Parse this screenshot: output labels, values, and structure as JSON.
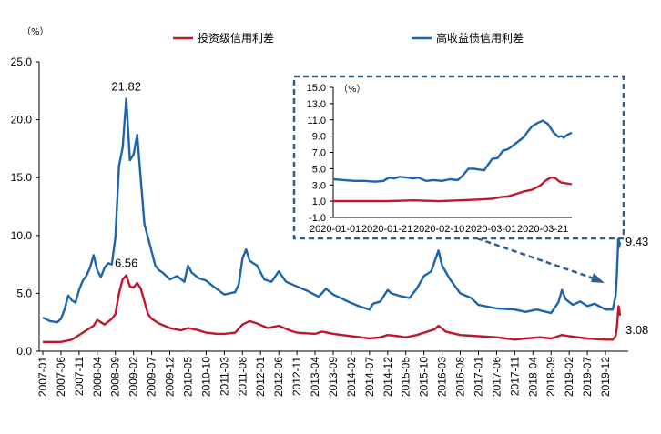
{
  "chart_data": {
    "type": "line",
    "unit_label": "（%）",
    "main": {
      "y_ticks": [
        "25.0",
        "20.0",
        "15.0",
        "10.0",
        "5.0",
        "0.0"
      ],
      "ylim": [
        0,
        25
      ],
      "x_ticks": [
        "2007-01",
        "2007-06",
        "2007-11",
        "2008-04",
        "2008-09",
        "2009-02",
        "2009-07",
        "2009-12",
        "2010-05",
        "2010-10",
        "2011-03",
        "2011-08",
        "2012-01",
        "2012-06",
        "2012-11",
        "2013-04",
        "2013-09",
        "2014-02",
        "2014-07",
        "2014-12",
        "2015-05",
        "2015-10",
        "2016-03",
        "2016-08",
        "2017-01",
        "2017-06",
        "2017-11",
        "2018-04",
        "2018-09",
        "2019-02",
        "2019-07",
        "2019-12"
      ],
      "x_range": [
        "2007-01",
        "2020-03"
      ],
      "series": [
        {
          "name": "投资级信用利差",
          "color": "#c0172a",
          "points": [
            [
              "2007-01",
              0.8
            ],
            [
              "2007-06",
              0.8
            ],
            [
              "2007-09",
              1.0
            ],
            [
              "2007-11",
              1.4
            ],
            [
              "2008-01",
              1.8
            ],
            [
              "2008-03",
              2.2
            ],
            [
              "2008-04",
              2.7
            ],
            [
              "2008-06",
              2.3
            ],
            [
              "2008-08",
              2.8
            ],
            [
              "2008-09",
              3.2
            ],
            [
              "2008-10",
              5.0
            ],
            [
              "2008-11",
              6.2
            ],
            [
              "2008-12",
              6.56
            ],
            [
              "2009-01",
              5.6
            ],
            [
              "2009-02",
              5.5
            ],
            [
              "2009-03",
              5.9
            ],
            [
              "2009-04",
              5.4
            ],
            [
              "2009-05",
              4.3
            ],
            [
              "2009-06",
              3.2
            ],
            [
              "2009-07",
              2.8
            ],
            [
              "2009-09",
              2.4
            ],
            [
              "2009-12",
              2.0
            ],
            [
              "2010-03",
              1.8
            ],
            [
              "2010-05",
              2.0
            ],
            [
              "2010-08",
              1.8
            ],
            [
              "2010-10",
              1.6
            ],
            [
              "2011-01",
              1.5
            ],
            [
              "2011-03",
              1.5
            ],
            [
              "2011-06",
              1.6
            ],
            [
              "2011-08",
              2.3
            ],
            [
              "2011-10",
              2.6
            ],
            [
              "2011-12",
              2.4
            ],
            [
              "2012-03",
              2.0
            ],
            [
              "2012-06",
              2.2
            ],
            [
              "2012-09",
              1.8
            ],
            [
              "2012-11",
              1.6
            ],
            [
              "2013-04",
              1.5
            ],
            [
              "2013-06",
              1.7
            ],
            [
              "2013-09",
              1.5
            ],
            [
              "2014-02",
              1.3
            ],
            [
              "2014-07",
              1.1
            ],
            [
              "2014-10",
              1.2
            ],
            [
              "2014-12",
              1.4
            ],
            [
              "2015-03",
              1.3
            ],
            [
              "2015-05",
              1.2
            ],
            [
              "2015-08",
              1.4
            ],
            [
              "2015-10",
              1.6
            ],
            [
              "2016-01",
              1.9
            ],
            [
              "2016-02",
              2.2
            ],
            [
              "2016-04",
              1.7
            ],
            [
              "2016-08",
              1.4
            ],
            [
              "2017-01",
              1.3
            ],
            [
              "2017-06",
              1.2
            ],
            [
              "2017-11",
              1.0
            ],
            [
              "2018-02",
              1.1
            ],
            [
              "2018-06",
              1.2
            ],
            [
              "2018-09",
              1.1
            ],
            [
              "2018-12",
              1.4
            ],
            [
              "2019-02",
              1.3
            ],
            [
              "2019-07",
              1.1
            ],
            [
              "2019-12",
              1.0
            ],
            [
              "2020-02",
              1.0
            ],
            [
              "2020-02-25",
              1.3
            ],
            [
              "2020-03-05",
              2.0
            ],
            [
              "2020-03-12",
              3.0
            ],
            [
              "2020-03-19",
              3.9
            ],
            [
              "2020-03-24",
              3.6
            ],
            [
              "2020-03-31",
              3.08
            ]
          ]
        },
        {
          "name": "高收益债信用利差",
          "color": "#1c64ae",
          "points": [
            [
              "2007-01",
              2.9
            ],
            [
              "2007-03",
              2.6
            ],
            [
              "2007-05",
              2.5
            ],
            [
              "2007-06",
              2.8
            ],
            [
              "2007-07",
              3.6
            ],
            [
              "2007-08",
              4.8
            ],
            [
              "2007-09",
              4.4
            ],
            [
              "2007-10",
              4.2
            ],
            [
              "2007-11",
              5.3
            ],
            [
              "2007-12",
              6.1
            ],
            [
              "2008-01",
              6.5
            ],
            [
              "2008-02",
              7.2
            ],
            [
              "2008-03",
              8.3
            ],
            [
              "2008-04",
              7.0
            ],
            [
              "2008-05",
              6.4
            ],
            [
              "2008-06",
              7.2
            ],
            [
              "2008-07",
              7.6
            ],
            [
              "2008-08",
              7.5
            ],
            [
              "2008-09",
              9.8
            ],
            [
              "2008-10",
              16.0
            ],
            [
              "2008-11",
              17.6
            ],
            [
              "2008-12",
              21.82
            ],
            [
              "2009-01",
              16.5
            ],
            [
              "2009-02",
              17.0
            ],
            [
              "2009-03",
              18.7
            ],
            [
              "2009-04",
              14.8
            ],
            [
              "2009-05",
              11.0
            ],
            [
              "2009-06",
              9.8
            ],
            [
              "2009-07",
              8.6
            ],
            [
              "2009-08",
              7.4
            ],
            [
              "2009-09",
              7.0
            ],
            [
              "2009-10",
              6.8
            ],
            [
              "2009-12",
              6.2
            ],
            [
              "2010-02",
              6.5
            ],
            [
              "2010-04",
              6.0
            ],
            [
              "2010-05",
              7.4
            ],
            [
              "2010-06",
              6.8
            ],
            [
              "2010-08",
              6.3
            ],
            [
              "2010-10",
              6.1
            ],
            [
              "2010-12",
              5.6
            ],
            [
              "2011-03",
              4.9
            ],
            [
              "2011-06",
              5.1
            ],
            [
              "2011-07",
              5.8
            ],
            [
              "2011-08",
              8.0
            ],
            [
              "2011-09",
              8.8
            ],
            [
              "2011-10",
              7.8
            ],
            [
              "2011-12",
              7.4
            ],
            [
              "2012-02",
              6.2
            ],
            [
              "2012-04",
              6.0
            ],
            [
              "2012-06",
              6.9
            ],
            [
              "2012-08",
              6.0
            ],
            [
              "2012-11",
              5.6
            ],
            [
              "2013-02",
              5.2
            ],
            [
              "2013-05",
              4.7
            ],
            [
              "2013-07",
              5.4
            ],
            [
              "2013-09",
              4.9
            ],
            [
              "2014-01",
              4.3
            ],
            [
              "2014-04",
              3.9
            ],
            [
              "2014-07",
              3.6
            ],
            [
              "2014-08",
              4.1
            ],
            [
              "2014-10",
              4.3
            ],
            [
              "2014-12",
              5.3
            ],
            [
              "2015-01",
              5.0
            ],
            [
              "2015-03",
              4.8
            ],
            [
              "2015-06",
              4.6
            ],
            [
              "2015-08",
              5.4
            ],
            [
              "2015-10",
              6.5
            ],
            [
              "2015-12",
              6.9
            ],
            [
              "2016-02",
              8.7
            ],
            [
              "2016-03",
              7.4
            ],
            [
              "2016-05",
              6.3
            ],
            [
              "2016-08",
              5.0
            ],
            [
              "2016-11",
              4.6
            ],
            [
              "2017-01",
              4.0
            ],
            [
              "2017-06",
              3.7
            ],
            [
              "2017-11",
              3.6
            ],
            [
              "2018-02",
              3.4
            ],
            [
              "2018-05",
              3.6
            ],
            [
              "2018-09",
              3.3
            ],
            [
              "2018-11",
              4.2
            ],
            [
              "2018-12",
              5.3
            ],
            [
              "2019-01",
              4.5
            ],
            [
              "2019-03",
              4.0
            ],
            [
              "2019-05",
              4.3
            ],
            [
              "2019-07",
              3.9
            ],
            [
              "2019-09",
              4.1
            ],
            [
              "2019-12",
              3.6
            ],
            [
              "2020-02",
              3.6
            ],
            [
              "2020-02-25",
              4.8
            ],
            [
              "2020-03-05",
              6.5
            ],
            [
              "2020-03-12",
              8.5
            ],
            [
              "2020-03-19",
              10.8
            ],
            [
              "2020-03-24",
              9.0
            ],
            [
              "2020-03-31",
              9.43
            ]
          ]
        }
      ],
      "annotations": [
        {
          "text": "21.82",
          "x": "2008-12",
          "y": 21.82,
          "anchor": "above"
        },
        {
          "text": "6.56",
          "x": "2008-12",
          "y": 6.56,
          "anchor": "above"
        },
        {
          "text": "9.43",
          "x": "2020-03-31",
          "y": 9.43,
          "anchor": "right"
        },
        {
          "text": "3.08",
          "x": "2020-03-31",
          "y": 3.08,
          "anchor": "right-below"
        }
      ]
    },
    "inset": {
      "unit_label": "（%）",
      "y_ticks": [
        "15.0",
        "13.0",
        "11.0",
        "9.0",
        "7.0",
        "5.0",
        "3.0",
        "1.0",
        "-1.0"
      ],
      "ylim": [
        -1,
        15
      ],
      "x_ticks": [
        "2020-01-01",
        "2020-01-21",
        "2020-02-10",
        "2020-03-01",
        "2020-03-21"
      ],
      "x_range_days": [
        0,
        90
      ],
      "series": [
        {
          "name": "投资级信用利差",
          "color": "#c0172a",
          "points": [
            [
              0,
              1.0
            ],
            [
              10,
              1.0
            ],
            [
              20,
              1.0
            ],
            [
              25,
              1.05
            ],
            [
              30,
              1.1
            ],
            [
              40,
              1.0
            ],
            [
              48,
              1.1
            ],
            [
              55,
              1.2
            ],
            [
              60,
              1.3
            ],
            [
              63,
              1.5
            ],
            [
              66,
              1.6
            ],
            [
              69,
              1.9
            ],
            [
              72,
              2.2
            ],
            [
              75,
              2.4
            ],
            [
              78,
              2.9
            ],
            [
              80,
              3.5
            ],
            [
              82,
              3.9
            ],
            [
              83,
              3.9
            ],
            [
              84,
              3.8
            ],
            [
              85,
              3.5
            ],
            [
              86,
              3.3
            ],
            [
              88,
              3.2
            ],
            [
              90,
              3.08
            ]
          ]
        },
        {
          "name": "高收益债信用利差",
          "color": "#1c64ae",
          "points": [
            [
              0,
              3.7
            ],
            [
              4,
              3.6
            ],
            [
              8,
              3.5
            ],
            [
              12,
              3.5
            ],
            [
              16,
              3.4
            ],
            [
              19,
              3.5
            ],
            [
              21,
              3.9
            ],
            [
              23,
              3.8
            ],
            [
              25,
              4.0
            ],
            [
              28,
              3.9
            ],
            [
              30,
              3.8
            ],
            [
              32,
              3.9
            ],
            [
              35,
              3.5
            ],
            [
              38,
              3.6
            ],
            [
              41,
              3.5
            ],
            [
              44,
              3.7
            ],
            [
              47,
              3.6
            ],
            [
              49,
              4.2
            ],
            [
              51,
              5.0
            ],
            [
              53,
              5.0
            ],
            [
              55,
              4.9
            ],
            [
              57,
              4.8
            ],
            [
              58,
              5.3
            ],
            [
              60,
              6.2
            ],
            [
              62,
              6.3
            ],
            [
              64,
              7.2
            ],
            [
              66,
              7.4
            ],
            [
              68,
              7.9
            ],
            [
              70,
              8.4
            ],
            [
              72,
              8.9
            ],
            [
              73,
              9.4
            ],
            [
              75,
              10.2
            ],
            [
              77,
              10.6
            ],
            [
              79,
              10.9
            ],
            [
              81,
              10.5
            ],
            [
              83,
              9.5
            ],
            [
              85,
              8.9
            ],
            [
              86,
              9.0
            ],
            [
              87,
              8.8
            ],
            [
              88,
              9.1
            ],
            [
              90,
              9.43
            ]
          ]
        }
      ]
    }
  }
}
